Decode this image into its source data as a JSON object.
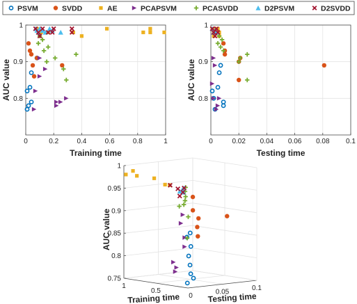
{
  "chart_data": [
    {
      "type": "scatter",
      "panel": "training",
      "title": "",
      "xlabel": "Training time",
      "ylabel": "AUC value",
      "xlim": [
        0,
        1
      ],
      "ylim": [
        0.7,
        1.0
      ],
      "xticks": [
        "0",
        "0.2",
        "0.4",
        "0.6",
        "0.8",
        "1"
      ],
      "yticks": [
        "0.8",
        "0.9",
        "1"
      ],
      "grid": true,
      "series": [
        {
          "name": "PSVM",
          "color": "#0072BD",
          "marker": "circle",
          "x": [
            0.01,
            0.01,
            0.02,
            0.03,
            0.04,
            0.04,
            0.08
          ],
          "y": [
            0.77,
            0.82,
            0.78,
            0.83,
            0.79,
            0.87,
            0.91
          ]
        },
        {
          "name": "SVDD",
          "color": "#D95319",
          "marker": "filled-circle",
          "x": [
            0.02,
            0.03,
            0.04,
            0.05,
            0.06,
            0.08,
            0.26
          ],
          "y": [
            0.95,
            0.93,
            0.92,
            0.89,
            0.86,
            0.91,
            0.89
          ]
        },
        {
          "name": "AE",
          "color": "#EDB120",
          "marker": "square",
          "x": [
            0.08,
            0.11,
            0.16,
            0.34,
            0.4,
            0.58,
            0.84,
            0.89,
            0.89,
            0.99
          ],
          "y": [
            0.99,
            0.98,
            0.98,
            0.98,
            0.97,
            0.99,
            0.98,
            0.99,
            0.98,
            0.98
          ]
        },
        {
          "name": "PCAPSVM",
          "color": "#7E2F8E",
          "marker": "triangle-right",
          "x": [
            0.06,
            0.07,
            0.1,
            0.1,
            0.14,
            0.22,
            0.22,
            0.25,
            0.29
          ],
          "y": [
            0.77,
            0.82,
            0.86,
            0.91,
            0.88,
            0.79,
            0.78,
            0.79,
            0.8
          ]
        },
        {
          "name": "PCASVDD",
          "color": "#77AC30",
          "marker": "plus",
          "x": [
            0.09,
            0.1,
            0.12,
            0.13,
            0.15,
            0.16,
            0.21,
            0.27,
            0.29,
            0.36
          ],
          "y": [
            0.95,
            0.97,
            0.96,
            0.93,
            0.9,
            0.94,
            0.91,
            0.88,
            0.85,
            0.92
          ]
        },
        {
          "name": "D2PSVM",
          "color": "#4DBEEE",
          "marker": "triangle-up",
          "x": [
            0.07,
            0.08,
            0.09,
            0.1,
            0.12,
            0.14,
            0.17,
            0.19,
            0.25
          ],
          "y": [
            0.99,
            0.985,
            0.98,
            0.99,
            0.985,
            0.98,
            0.99,
            0.985,
            0.98
          ]
        },
        {
          "name": "D2SVDD",
          "color": "#A2142F",
          "marker": "x",
          "x": [
            0.07,
            0.09,
            0.1,
            0.12,
            0.16,
            0.19,
            0.2,
            0.33,
            0.33
          ],
          "y": [
            0.99,
            0.98,
            0.97,
            0.99,
            0.98,
            0.98,
            0.99,
            0.98,
            0.99
          ]
        }
      ]
    },
    {
      "type": "scatter",
      "panel": "testing",
      "title": "",
      "xlabel": "Testing time",
      "ylabel": "AUC value",
      "xlim": [
        0,
        0.1
      ],
      "ylim": [
        0.7,
        1.0
      ],
      "xticks": [
        "0",
        "0.02",
        "0.04",
        "0.06",
        "0.08",
        "0.1"
      ],
      "yticks": [
        "0.8",
        "0.9",
        "1"
      ],
      "grid": true,
      "series": [
        {
          "name": "PSVM",
          "color": "#0072BD",
          "marker": "circle",
          "x": [
            0.001,
            0.002,
            0.003,
            0.005,
            0.006,
            0.007,
            0.009,
            0.009
          ],
          "y": [
            0.82,
            0.8,
            0.77,
            0.83,
            0.87,
            0.89,
            0.79,
            0.78
          ]
        },
        {
          "name": "SVDD",
          "color": "#D95319",
          "marker": "filled-circle",
          "x": [
            0.009,
            0.01,
            0.01,
            0.02,
            0.02,
            0.021,
            0.081
          ],
          "y": [
            0.95,
            0.93,
            0.92,
            0.9,
            0.85,
            0.91,
            0.89
          ]
        },
        {
          "name": "AE",
          "color": "#EDB120",
          "marker": "square",
          "x": [
            0.001,
            0.002,
            0.002,
            0.003,
            0.004,
            0.005,
            0.006,
            0.006
          ],
          "y": [
            0.99,
            0.98,
            0.97,
            0.99,
            0.98,
            0.99,
            0.98,
            0.97
          ]
        },
        {
          "name": "PCAPSVM",
          "color": "#7E2F8E",
          "marker": "triangle-right",
          "x": [
            0.001,
            0.002,
            0.002,
            0.003,
            0.004,
            0.005,
            0.006
          ],
          "y": [
            0.84,
            0.8,
            0.91,
            0.89,
            0.77,
            0.78,
            0.8
          ]
        },
        {
          "name": "PCASVDD",
          "color": "#77AC30",
          "marker": "plus",
          "x": [
            0.005,
            0.006,
            0.007,
            0.008,
            0.009,
            0.02,
            0.021,
            0.026,
            0.026
          ],
          "y": [
            0.95,
            0.97,
            0.94,
            0.96,
            0.93,
            0.9,
            0.91,
            0.92,
            0.85
          ]
        },
        {
          "name": "D2PSVM",
          "color": "#4DBEEE",
          "marker": "triangle-up",
          "x": [
            0.001,
            0.002,
            0.003,
            0.004
          ],
          "y": [
            0.99,
            0.98,
            0.985,
            0.98
          ]
        },
        {
          "name": "D2SVDD",
          "color": "#A2142F",
          "marker": "x",
          "x": [
            0.001,
            0.002,
            0.003,
            0.004,
            0.005
          ],
          "y": [
            0.99,
            0.98,
            0.97,
            0.99,
            0.98
          ]
        }
      ]
    },
    {
      "type": "scatter",
      "panel": "3d",
      "title": "",
      "xlabel": "Training time",
      "zlabel": "Testing time",
      "ylabel": "AUC value",
      "xlim": [
        0,
        1
      ],
      "zlim": [
        0,
        0.1
      ],
      "ylim": [
        0.75,
        1.0
      ],
      "xticks": [
        "1",
        "0.5",
        "0"
      ],
      "zticks": [
        "0.05",
        "0.1"
      ],
      "yticks": [
        "0.75",
        "0.8",
        "0.85",
        "0.9",
        "0.95",
        "1"
      ],
      "grid": true,
      "series": [
        {
          "name": "PSVM",
          "color": "#0072BD",
          "marker": "circle",
          "x": [
            0.02,
            0.02,
            0.01,
            0.01,
            0.04,
            0.04,
            0.08,
            0.03
          ],
          "z": [
            0.003,
            0.006,
            0.009,
            0.004,
            0.007,
            0.008,
            0.006,
            0.002
          ],
          "y": [
            0.82,
            0.78,
            0.77,
            0.8,
            0.87,
            0.84,
            0.86,
            0.76
          ]
        },
        {
          "name": "SVDD",
          "color": "#D95319",
          "marker": "filled-circle",
          "x": [
            0.02,
            0.03,
            0.05,
            0.06,
            0.08,
            0.26
          ],
          "z": [
            0.009,
            0.01,
            0.02,
            0.02,
            0.021,
            0.081
          ],
          "y": [
            0.95,
            0.92,
            0.9,
            0.86,
            0.88,
            0.89
          ]
        },
        {
          "name": "AE",
          "color": "#EDB120",
          "marker": "square",
          "x": [
            0.99,
            0.89,
            0.84,
            0.58,
            0.4,
            0.34
          ],
          "z": [
            0.002,
            0.003,
            0.004,
            0.005,
            0.004,
            0.005
          ],
          "y": [
            0.98,
            0.99,
            0.98,
            0.98,
            0.97,
            0.97
          ]
        },
        {
          "name": "PCAPSVM",
          "color": "#7E2F8E",
          "marker": "triangle-right",
          "x": [
            0.06,
            0.1,
            0.14,
            0.22,
            0.25,
            0.29,
            0.07
          ],
          "z": [
            0.001,
            0.002,
            0.003,
            0.004,
            0.005,
            0.006,
            0.002
          ],
          "y": [
            0.84,
            0.91,
            0.89,
            0.79,
            0.78,
            0.8,
            0.86
          ]
        },
        {
          "name": "PCASVDD",
          "color": "#77AC30",
          "marker": "plus",
          "x": [
            0.09,
            0.1,
            0.12,
            0.13,
            0.16,
            0.21,
            0.29,
            0.36
          ],
          "z": [
            0.005,
            0.006,
            0.007,
            0.008,
            0.009,
            0.02,
            0.026,
            0.021
          ],
          "y": [
            0.95,
            0.97,
            0.94,
            0.96,
            0.93,
            0.9,
            0.85,
            0.92
          ]
        },
        {
          "name": "D2PSVM",
          "color": "#4DBEEE",
          "marker": "triangle-up",
          "x": [
            0.07,
            0.09,
            0.12,
            0.17
          ],
          "z": [
            0.001,
            0.002,
            0.003,
            0.004
          ],
          "y": [
            0.97,
            0.96,
            0.965,
            0.96
          ]
        },
        {
          "name": "D2SVDD",
          "color": "#A2142F",
          "marker": "x",
          "x": [
            0.07,
            0.1,
            0.16,
            0.2,
            0.33
          ],
          "z": [
            0.001,
            0.002,
            0.003,
            0.004,
            0.005
          ],
          "y": [
            0.97,
            0.96,
            0.95,
            0.965,
            0.97
          ]
        }
      ]
    }
  ],
  "legend": {
    "placement": "top-center",
    "entries": [
      {
        "name": "PSVM",
        "color": "#0072BD",
        "marker": "circle"
      },
      {
        "name": "SVDD",
        "color": "#D95319",
        "marker": "filled-circle"
      },
      {
        "name": "AE",
        "color": "#EDB120",
        "marker": "square"
      },
      {
        "name": "PCAPSVM",
        "color": "#7E2F8E",
        "marker": "triangle-right"
      },
      {
        "name": "PCASVDD",
        "color": "#77AC30",
        "marker": "plus"
      },
      {
        "name": "D2PSVM",
        "color": "#4DBEEE",
        "marker": "triangle-up"
      },
      {
        "name": "D2SVDD",
        "color": "#A2142F",
        "marker": "x"
      }
    ]
  }
}
